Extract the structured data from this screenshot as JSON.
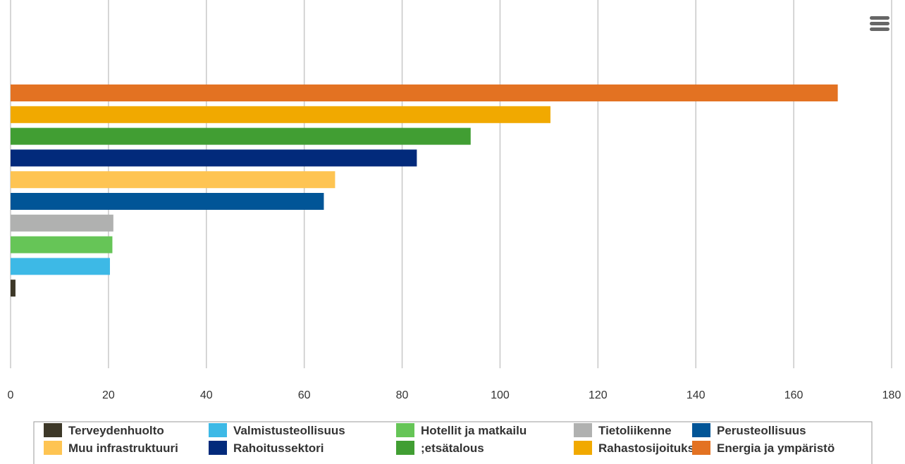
{
  "menu": {
    "icon": "hamburger-menu-icon"
  },
  "chart_data": {
    "type": "bar",
    "orientation": "horizontal",
    "xlim": [
      0,
      180
    ],
    "x_ticks": [
      "0",
      "20",
      "40",
      "60",
      "80",
      "100",
      "120",
      "140",
      "160",
      "180"
    ],
    "grid": true,
    "legend_position": "bottom",
    "series": [
      {
        "name": "Terveydenhuolto",
        "value": 1,
        "color": "#3d3828"
      },
      {
        "name": "Valmistusteollisuus",
        "value": 20.3,
        "color": "#3db9e6"
      },
      {
        "name": "Hotellit ja matkailu",
        "value": 20.8,
        "color": "#66c557"
      },
      {
        "name": "Tietoliikenne",
        "value": 21,
        "color": "#b0b1b0"
      },
      {
        "name": "Perusteollisuus",
        "value": 64,
        "color": "#015597"
      },
      {
        "name": "Muu infrastruktuuri",
        "value": 66.3,
        "color": "#fec452"
      },
      {
        "name": "Rahoitussektori",
        "value": 83,
        "color": "#022a7b"
      },
      {
        "name": ";etsätalous",
        "value": 94,
        "color": "#419e33"
      },
      {
        "name": "Rahastosijoitukset",
        "value": 110.3,
        "color": "#f1a900"
      },
      {
        "name": "Energia ja ympäristö",
        "value": 169,
        "color": "#e37222"
      }
    ]
  }
}
